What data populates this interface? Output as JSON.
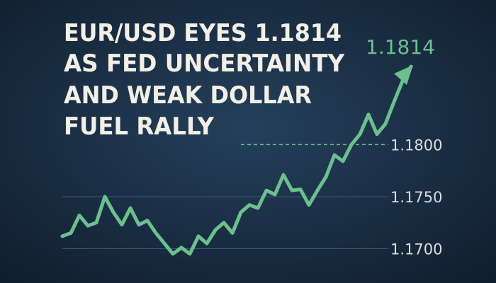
{
  "chart_data": {
    "type": "line",
    "title": [
      "EUR/USD EYES 1.1814",
      "AS FED UNCERTAINTY",
      "AND WEAK DOLLAR",
      "FUEL RALLY"
    ],
    "annotation": "1.1814",
    "values": [
      1.1712,
      1.1715,
      1.1732,
      1.1722,
      1.1725,
      1.175,
      1.1735,
      1.1723,
      1.1739,
      1.1723,
      1.1727,
      1.1715,
      1.1705,
      1.1695,
      1.1701,
      1.1695,
      1.1712,
      1.1705,
      1.1718,
      1.1725,
      1.1715,
      1.1735,
      1.1742,
      1.1739,
      1.1756,
      1.1752,
      1.1771,
      1.1756,
      1.1757,
      1.1742,
      1.1756,
      1.1769,
      1.179,
      1.1784,
      1.18,
      1.181,
      1.1829,
      1.181,
      1.182,
      1.1841,
      1.1861,
      1.1875
    ],
    "color": "#6cc08e",
    "ylim": [
      1.1667,
      1.1939
    ],
    "yticks": [
      {
        "value": 1.17,
        "label": "1.1700"
      },
      {
        "value": 1.175,
        "label": "1.1750"
      },
      {
        "value": 1.18,
        "label": "1.1800"
      }
    ],
    "grid": true
  }
}
